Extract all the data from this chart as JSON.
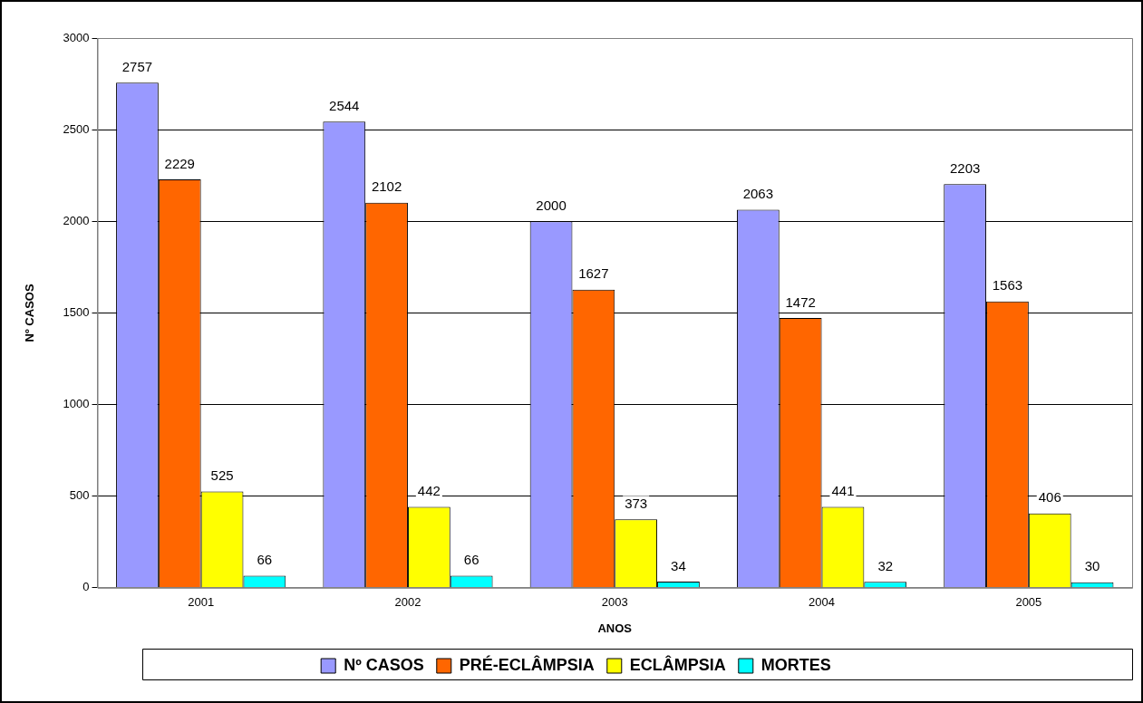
{
  "chart_data": {
    "type": "bar",
    "xlabel": "ANOS",
    "ylabel": "Nº CASOS",
    "categories": [
      "2001",
      "2002",
      "2003",
      "2004",
      "2005"
    ],
    "series": [
      {
        "name": "Nº CASOS",
        "color": "#9999ff",
        "values": [
          2757,
          2544,
          2000,
          2063,
          2203
        ]
      },
      {
        "name": "PRÉ-ECLÂMPSIA",
        "color": "#ff6600",
        "values": [
          2229,
          2102,
          1627,
          1472,
          1563
        ]
      },
      {
        "name": "ECLÂMPSIA",
        "color": "#ffff00",
        "values": [
          525,
          442,
          373,
          441,
          406
        ]
      },
      {
        "name": "MORTES",
        "color": "#00ffff",
        "values": [
          66,
          66,
          34,
          32,
          30
        ]
      }
    ],
    "ylim": [
      0,
      3000
    ],
    "yticks": [
      0,
      500,
      1000,
      1500,
      2000,
      2500,
      3000
    ],
    "grid": "y",
    "legend": "bottom",
    "data_labels": true
  }
}
